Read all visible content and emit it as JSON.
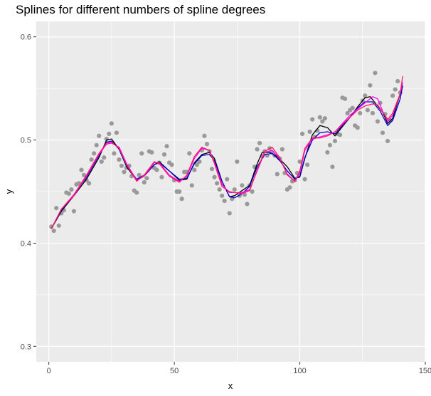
{
  "chart_data": {
    "type": "scatter",
    "title": "Splines for different numbers of spline degrees",
    "xlabel": "x",
    "ylabel": "y",
    "xlim": [
      -5,
      150
    ],
    "ylim": [
      0.285,
      0.615
    ],
    "x_ticks": [
      0,
      50,
      100,
      150
    ],
    "y_ticks": [
      0.3,
      0.4,
      0.5,
      0.6
    ],
    "x_tick_labels": [
      "0",
      "50",
      "100",
      "150"
    ],
    "y_tick_labels": [
      "0.3",
      "0.4",
      "0.5",
      "0.6"
    ],
    "grid": true,
    "panel_background": "#ebebeb",
    "grid_color": "#ffffff",
    "point_color": "#999999",
    "points": [
      [
        1,
        0.416
      ],
      [
        2,
        0.412
      ],
      [
        3,
        0.434
      ],
      [
        4,
        0.417
      ],
      [
        5,
        0.429
      ],
      [
        6,
        0.432
      ],
      [
        7,
        0.449
      ],
      [
        8,
        0.448
      ],
      [
        9,
        0.452
      ],
      [
        10,
        0.431
      ],
      [
        11,
        0.457
      ],
      [
        12,
        0.458
      ],
      [
        13,
        0.471
      ],
      [
        14,
        0.466
      ],
      [
        15,
        0.461
      ],
      [
        16,
        0.458
      ],
      [
        17,
        0.481
      ],
      [
        18,
        0.487
      ],
      [
        19,
        0.495
      ],
      [
        20,
        0.504
      ],
      [
        21,
        0.479
      ],
      [
        22,
        0.483
      ],
      [
        23,
        0.501
      ],
      [
        24,
        0.506
      ],
      [
        25,
        0.516
      ],
      [
        26,
        0.487
      ],
      [
        27,
        0.507
      ],
      [
        28,
        0.481
      ],
      [
        29,
        0.475
      ],
      [
        30,
        0.469
      ],
      [
        31,
        0.473
      ],
      [
        32,
        0.475
      ],
      [
        33,
        0.465
      ],
      [
        34,
        0.451
      ],
      [
        35,
        0.449
      ],
      [
        36,
        0.466
      ],
      [
        37,
        0.487
      ],
      [
        38,
        0.459
      ],
      [
        39,
        0.463
      ],
      [
        40,
        0.489
      ],
      [
        41,
        0.488
      ],
      [
        42,
        0.473
      ],
      [
        43,
        0.471
      ],
      [
        44,
        0.478
      ],
      [
        45,
        0.464
      ],
      [
        46,
        0.486
      ],
      [
        47,
        0.494
      ],
      [
        48,
        0.478
      ],
      [
        49,
        0.476
      ],
      [
        50,
        0.461
      ],
      [
        51,
        0.45
      ],
      [
        52,
        0.45
      ],
      [
        53,
        0.443
      ],
      [
        54,
        0.469
      ],
      [
        55,
        0.469
      ],
      [
        56,
        0.487
      ],
      [
        57,
        0.456
      ],
      [
        58,
        0.471
      ],
      [
        59,
        0.476
      ],
      [
        60,
        0.479
      ],
      [
        61,
        0.49
      ],
      [
        62,
        0.504
      ],
      [
        63,
        0.496
      ],
      [
        64,
        0.489
      ],
      [
        65,
        0.472
      ],
      [
        66,
        0.464
      ],
      [
        67,
        0.458
      ],
      [
        68,
        0.452
      ],
      [
        69,
        0.446
      ],
      [
        70,
        0.441
      ],
      [
        71,
        0.462
      ],
      [
        72,
        0.429
      ],
      [
        73,
        0.443
      ],
      [
        74,
        0.452
      ],
      [
        75,
        0.479
      ],
      [
        76,
        0.446
      ],
      [
        77,
        0.456
      ],
      [
        78,
        0.447
      ],
      [
        79,
        0.438
      ],
      [
        80,
        0.456
      ],
      [
        81,
        0.45
      ],
      [
        82,
        0.474
      ],
      [
        83,
        0.491
      ],
      [
        84,
        0.497
      ],
      [
        85,
        0.484
      ],
      [
        86,
        0.489
      ],
      [
        87,
        0.485
      ],
      [
        88,
        0.492
      ],
      [
        89,
        0.488
      ],
      [
        90,
        0.485
      ],
      [
        91,
        0.467
      ],
      [
        92,
        0.482
      ],
      [
        93,
        0.491
      ],
      [
        94,
        0.468
      ],
      [
        95,
        0.452
      ],
      [
        96,
        0.454
      ],
      [
        97,
        0.46
      ],
      [
        98,
        0.461
      ],
      [
        99,
        0.468
      ],
      [
        100,
        0.479
      ],
      [
        101,
        0.506
      ],
      [
        102,
        0.462
      ],
      [
        103,
        0.476
      ],
      [
        104,
        0.508
      ],
      [
        105,
        0.52
      ],
      [
        106,
        0.503
      ],
      [
        107,
        0.509
      ],
      [
        108,
        0.522
      ],
      [
        109,
        0.518
      ],
      [
        110,
        0.521
      ],
      [
        111,
        0.488
      ],
      [
        112,
        0.495
      ],
      [
        113,
        0.474
      ],
      [
        114,
        0.499
      ],
      [
        115,
        0.506
      ],
      [
        116,
        0.505
      ],
      [
        117,
        0.541
      ],
      [
        118,
        0.54
      ],
      [
        119,
        0.526
      ],
      [
        120,
        0.529
      ],
      [
        121,
        0.531
      ],
      [
        122,
        0.514
      ],
      [
        123,
        0.512
      ],
      [
        124,
        0.526
      ],
      [
        125,
        0.538
      ],
      [
        126,
        0.543
      ],
      [
        127,
        0.529
      ],
      [
        128,
        0.553
      ],
      [
        129,
        0.526
      ],
      [
        130,
        0.565
      ],
      [
        131,
        0.518
      ],
      [
        132,
        0.536
      ],
      [
        133,
        0.507
      ],
      [
        134,
        0.525
      ],
      [
        135,
        0.499
      ],
      [
        136,
        0.519
      ],
      [
        137,
        0.543
      ],
      [
        138,
        0.549
      ],
      [
        139,
        0.557
      ],
      [
        140,
        0.546
      ]
    ],
    "series": [
      {
        "color": "#000000",
        "values": [
          [
            1,
            0.414
          ],
          [
            5,
            0.431
          ],
          [
            10,
            0.446
          ],
          [
            15,
            0.462
          ],
          [
            20,
            0.483
          ],
          [
            23,
            0.5
          ],
          [
            25,
            0.501
          ],
          [
            28,
            0.491
          ],
          [
            31,
            0.474
          ],
          [
            35,
            0.461
          ],
          [
            38,
            0.465
          ],
          [
            42,
            0.476
          ],
          [
            44,
            0.479
          ],
          [
            48,
            0.47
          ],
          [
            52,
            0.461
          ],
          [
            55,
            0.462
          ],
          [
            58,
            0.478
          ],
          [
            61,
            0.486
          ],
          [
            64,
            0.488
          ],
          [
            66,
            0.482
          ],
          [
            69,
            0.46
          ],
          [
            72,
            0.445
          ],
          [
            74,
            0.446
          ],
          [
            77,
            0.451
          ],
          [
            80,
            0.456
          ],
          [
            83,
            0.477
          ],
          [
            85,
            0.488
          ],
          [
            88,
            0.488
          ],
          [
            91,
            0.484
          ],
          [
            95,
            0.474
          ],
          [
            98,
            0.463
          ],
          [
            100,
            0.464
          ],
          [
            102,
            0.482
          ],
          [
            105,
            0.505
          ],
          [
            108,
            0.514
          ],
          [
            111,
            0.512
          ],
          [
            114,
            0.504
          ],
          [
            117,
            0.513
          ],
          [
            120,
            0.522
          ],
          [
            123,
            0.532
          ],
          [
            126,
            0.541
          ],
          [
            128,
            0.542
          ],
          [
            130,
            0.536
          ],
          [
            133,
            0.527
          ],
          [
            135,
            0.516
          ],
          [
            137,
            0.521
          ],
          [
            140,
            0.545
          ],
          [
            141,
            0.552
          ]
        ]
      },
      {
        "color": "#0000cc",
        "values": [
          [
            1,
            0.414
          ],
          [
            5,
            0.432
          ],
          [
            10,
            0.447
          ],
          [
            15,
            0.464
          ],
          [
            20,
            0.485
          ],
          [
            23,
            0.498
          ],
          [
            25,
            0.499
          ],
          [
            28,
            0.491
          ],
          [
            31,
            0.475
          ],
          [
            35,
            0.462
          ],
          [
            38,
            0.466
          ],
          [
            42,
            0.476
          ],
          [
            44,
            0.478
          ],
          [
            48,
            0.47
          ],
          [
            52,
            0.462
          ],
          [
            55,
            0.463
          ],
          [
            58,
            0.477
          ],
          [
            61,
            0.485
          ],
          [
            64,
            0.486
          ],
          [
            66,
            0.48
          ],
          [
            69,
            0.46
          ],
          [
            72,
            0.445
          ],
          [
            74,
            0.444
          ],
          [
            77,
            0.448
          ],
          [
            80,
            0.455
          ],
          [
            83,
            0.474
          ],
          [
            86,
            0.486
          ],
          [
            89,
            0.487
          ],
          [
            92,
            0.48
          ],
          [
            95,
            0.47
          ],
          [
            98,
            0.462
          ],
          [
            100,
            0.465
          ],
          [
            102,
            0.483
          ],
          [
            105,
            0.5
          ],
          [
            108,
            0.507
          ],
          [
            111,
            0.508
          ],
          [
            114,
            0.506
          ],
          [
            117,
            0.514
          ],
          [
            120,
            0.522
          ],
          [
            123,
            0.531
          ],
          [
            126,
            0.537
          ],
          [
            129,
            0.537
          ],
          [
            132,
            0.528
          ],
          [
            135,
            0.514
          ],
          [
            137,
            0.519
          ],
          [
            140,
            0.54
          ],
          [
            141,
            0.553
          ]
        ]
      },
      {
        "color": "#ff00ff",
        "values": [
          [
            1,
            0.414
          ],
          [
            5,
            0.433
          ],
          [
            10,
            0.446
          ],
          [
            15,
            0.465
          ],
          [
            20,
            0.486
          ],
          [
            23,
            0.496
          ],
          [
            25,
            0.497
          ],
          [
            28,
            0.493
          ],
          [
            31,
            0.477
          ],
          [
            35,
            0.461
          ],
          [
            38,
            0.465
          ],
          [
            42,
            0.478
          ],
          [
            44,
            0.478
          ],
          [
            48,
            0.466
          ],
          [
            52,
            0.46
          ],
          [
            55,
            0.465
          ],
          [
            58,
            0.482
          ],
          [
            61,
            0.492
          ],
          [
            64,
            0.49
          ],
          [
            66,
            0.478
          ],
          [
            69,
            0.457
          ],
          [
            72,
            0.449
          ],
          [
            74,
            0.449
          ],
          [
            77,
            0.449
          ],
          [
            80,
            0.452
          ],
          [
            83,
            0.47
          ],
          [
            86,
            0.488
          ],
          [
            89,
            0.49
          ],
          [
            92,
            0.482
          ],
          [
            95,
            0.467
          ],
          [
            98,
            0.46
          ],
          [
            100,
            0.468
          ],
          [
            102,
            0.49
          ],
          [
            105,
            0.501
          ],
          [
            108,
            0.503
          ],
          [
            111,
            0.505
          ],
          [
            114,
            0.508
          ],
          [
            117,
            0.516
          ],
          [
            120,
            0.524
          ],
          [
            123,
            0.53
          ],
          [
            126,
            0.536
          ],
          [
            129,
            0.542
          ],
          [
            131,
            0.54
          ],
          [
            133,
            0.528
          ],
          [
            135,
            0.518
          ],
          [
            137,
            0.524
          ],
          [
            140,
            0.545
          ],
          [
            141,
            0.556
          ]
        ]
      },
      {
        "color": "#ff1a5e",
        "values": [
          [
            1,
            0.414
          ],
          [
            5,
            0.433
          ],
          [
            10,
            0.447
          ],
          [
            15,
            0.466
          ],
          [
            20,
            0.487
          ],
          [
            23,
            0.497
          ],
          [
            25,
            0.498
          ],
          [
            28,
            0.492
          ],
          [
            31,
            0.476
          ],
          [
            35,
            0.46
          ],
          [
            38,
            0.466
          ],
          [
            42,
            0.479
          ],
          [
            44,
            0.477
          ],
          [
            48,
            0.465
          ],
          [
            52,
            0.459
          ],
          [
            55,
            0.466
          ],
          [
            58,
            0.484
          ],
          [
            61,
            0.493
          ],
          [
            64,
            0.49
          ],
          [
            66,
            0.477
          ],
          [
            69,
            0.455
          ],
          [
            72,
            0.45
          ],
          [
            74,
            0.449
          ],
          [
            77,
            0.448
          ],
          [
            80,
            0.451
          ],
          [
            83,
            0.471
          ],
          [
            86,
            0.489
          ],
          [
            89,
            0.493
          ],
          [
            92,
            0.483
          ],
          [
            95,
            0.466
          ],
          [
            98,
            0.46
          ],
          [
            100,
            0.47
          ],
          [
            102,
            0.492
          ],
          [
            105,
            0.502
          ],
          [
            108,
            0.502
          ],
          [
            111,
            0.504
          ],
          [
            114,
            0.508
          ],
          [
            117,
            0.515
          ],
          [
            120,
            0.522
          ],
          [
            123,
            0.529
          ],
          [
            126,
            0.533
          ],
          [
            129,
            0.535
          ],
          [
            131,
            0.534
          ],
          [
            133,
            0.527
          ],
          [
            135,
            0.52
          ],
          [
            137,
            0.526
          ],
          [
            140,
            0.545
          ],
          [
            141,
            0.562
          ]
        ]
      }
    ]
  }
}
